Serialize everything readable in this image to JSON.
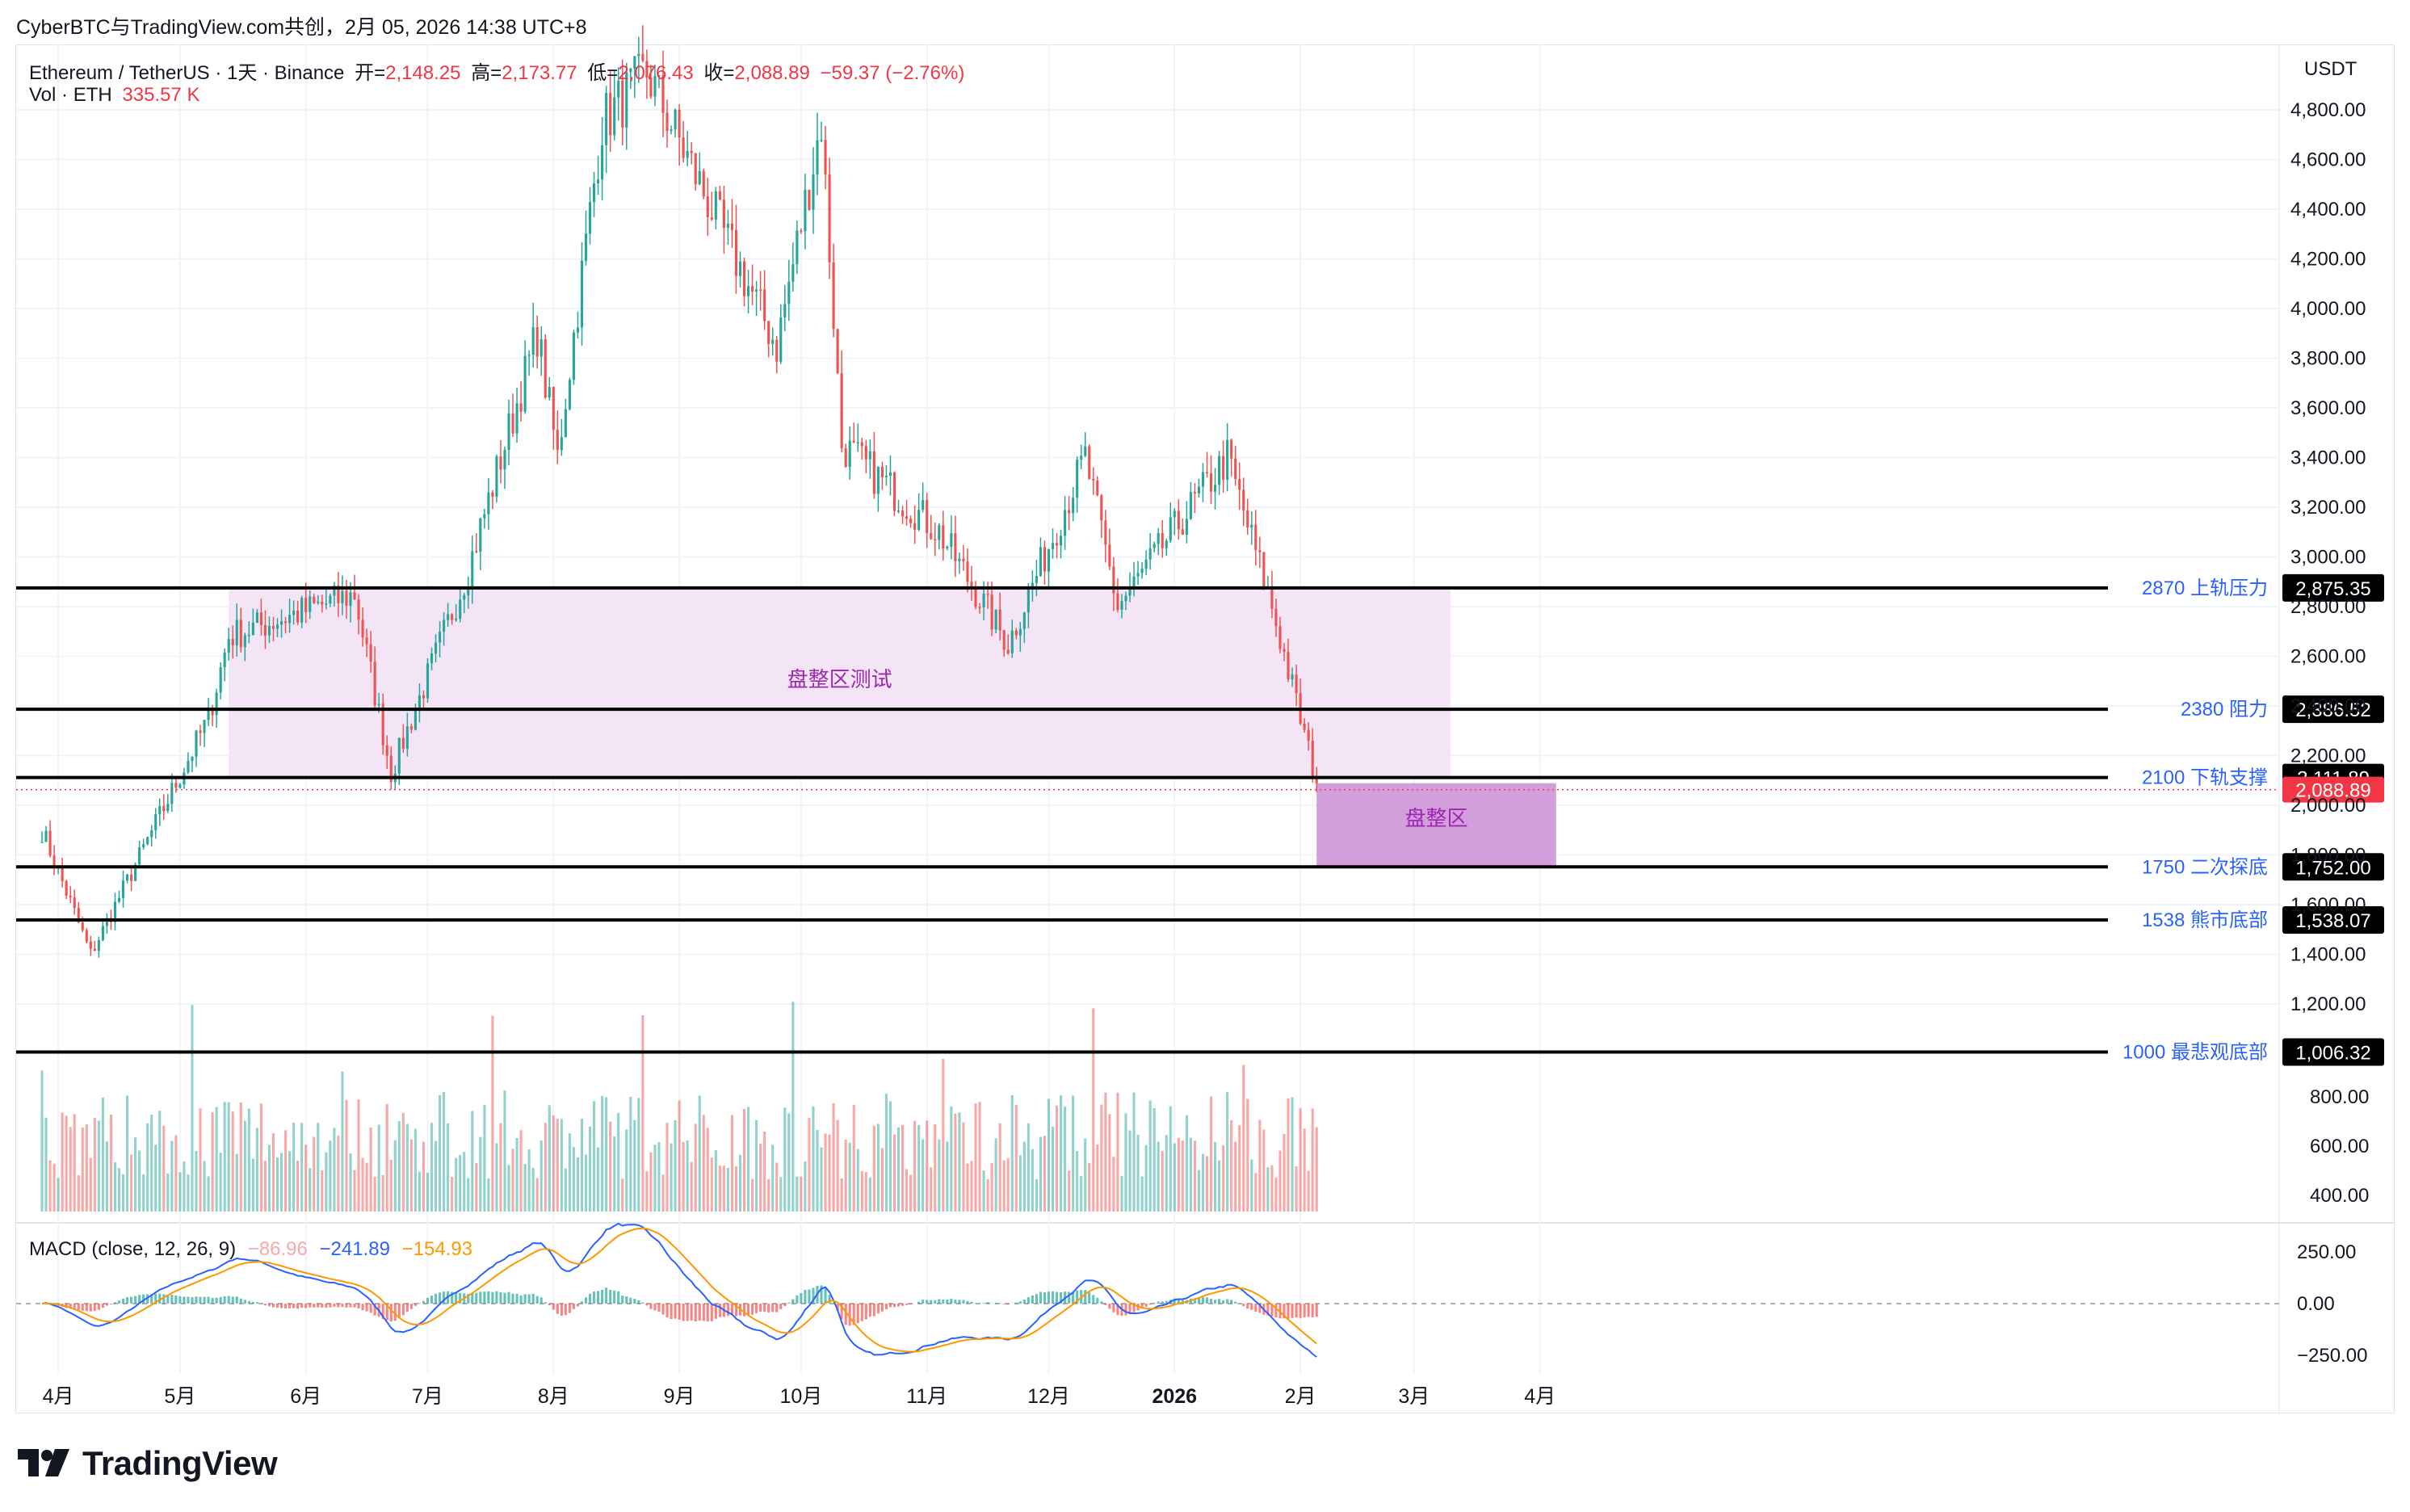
{
  "header": {
    "text": "CyberBTC与TradingView.com共创，2月 05, 2026 14:38 UTC+8"
  },
  "symbol": {
    "title": "Ethereum / TetherUS · 1天 · Binance",
    "open_label": "开=",
    "open": "2,148.25",
    "high_label": "高=",
    "high": "2,173.77",
    "low_label": "低=",
    "low": "2,076.43",
    "close_label": "收=",
    "close": "2,088.89",
    "change": "−59.37 (−2.76%)"
  },
  "volume_legend": {
    "label": "Vol · ETH",
    "value": "335.57 K"
  },
  "macd_legend": {
    "label": "MACD (close, 12, 26, 9)",
    "hist": "−86.96",
    "macd": "−241.89",
    "signal": "−154.93"
  },
  "price_axis": {
    "unit": "USDT",
    "ticks": [
      "4,800.00",
      "4,600.00",
      "4,400.00",
      "4,200.00",
      "4,000.00",
      "3,800.00",
      "3,600.00",
      "3,400.00",
      "3,200.00",
      "3,000.00",
      "2,800.00",
      "2,600.00",
      "2,400.00",
      "2,200.00",
      "2,000.00",
      "1,800.00",
      "1,600.00",
      "1,400.00",
      "1,200.00"
    ],
    "tick_values": [
      4800,
      4600,
      4400,
      4200,
      4000,
      3800,
      3600,
      3400,
      3200,
      3000,
      2800,
      2600,
      2400,
      2200,
      2000,
      1800,
      1600,
      1400,
      1200
    ],
    "volume_ticks": [
      "800.00",
      "600.00",
      "400.00"
    ],
    "macd_ticks": [
      "250.00",
      "0.00",
      "−250.00"
    ]
  },
  "time_axis": {
    "labels": [
      "4月",
      "5月",
      "6月",
      "7月",
      "8月",
      "9月",
      "10月",
      "11月",
      "12月",
      "2026",
      "2月",
      "3月",
      "4月"
    ]
  },
  "colors": {
    "up": "#26a69a",
    "down": "#ef5350",
    "label_blue": "#2962ff",
    "zone_fill": "#f3e5f5",
    "zone_box": "#ce93d8",
    "zone_text": "#9c27b0",
    "macd_line": "#2962ff",
    "signal_line": "#ff9800"
  },
  "chart_data": {
    "type": "candlestick",
    "title": "Ethereum / TetherUS · 1天 · Binance",
    "y_axis": {
      "ylim": [
        1000,
        4900
      ],
      "unit": "USDT"
    },
    "x_range": [
      "2025-03-28",
      "2026-04-25"
    ],
    "series_description": "ETH daily price: starts ~1900 in late Mar 2025, low ~1400 in early Apr, rallies to ~2600 mid-May, consolidates 2400-2800 through early Jul, rallies to ~4950 peak late Aug, holds 4000-4800 into Oct, declines to ~2900 by Nov, ranges 2800-3400 through Jan 2026, drops to 2088.89 on 2026-02-05.",
    "key_points": [
      {
        "date": "2025-03-28",
        "price": 1900
      },
      {
        "date": "2025-04-09",
        "price": 1400
      },
      {
        "date": "2025-05-08",
        "price": 2350
      },
      {
        "date": "2025-05-13",
        "price": 2680
      },
      {
        "date": "2025-06-13",
        "price": 2850
      },
      {
        "date": "2025-06-22",
        "price": 2130
      },
      {
        "date": "2025-07-11",
        "price": 2950
      },
      {
        "date": "2025-07-28",
        "price": 3900
      },
      {
        "date": "2025-08-02",
        "price": 3400
      },
      {
        "date": "2025-08-13",
        "price": 4750
      },
      {
        "date": "2025-08-24",
        "price": 4950
      },
      {
        "date": "2025-09-25",
        "price": 3850
      },
      {
        "date": "2025-10-06",
        "price": 4750
      },
      {
        "date": "2025-10-11",
        "price": 3450
      },
      {
        "date": "2025-11-04",
        "price": 3100
      },
      {
        "date": "2025-11-21",
        "price": 2650
      },
      {
        "date": "2025-12-10",
        "price": 3400
      },
      {
        "date": "2025-12-18",
        "price": 2800
      },
      {
        "date": "2026-01-14",
        "price": 3400
      },
      {
        "date": "2026-01-25",
        "price": 2800
      },
      {
        "date": "2026-02-05",
        "price": 2088.89
      }
    ],
    "levels": [
      {
        "label": "2870 上轨压力",
        "value": "2,875.35",
        "price": 2875.35
      },
      {
        "label": "2380 阻力",
        "value": "2,386.52",
        "price": 2386.52
      },
      {
        "label": "2100 下轨支撑",
        "value": "2,111.89",
        "price": 2111.89
      },
      {
        "label": "1750 二次探底",
        "value": "1,752.00",
        "price": 1752
      },
      {
        "label": "1538 熊市底部",
        "value": "1,538.07",
        "price": 1538.07
      },
      {
        "label": "1000 最悲观底部",
        "value": "1,006.32",
        "price": 1006.32
      }
    ],
    "current_price": {
      "value": "2,088.89",
      "price": 2088.89
    },
    "zones": [
      {
        "label": "盘整区测试",
        "from": "2025-05-13",
        "to": "2026-03-10",
        "low": 2111.89,
        "high": 2875.35
      },
      {
        "label": "盘整区",
        "from": "2026-02-05",
        "to": "2026-04-05",
        "low": 1752,
        "high": 2088.89
      }
    ]
  }
}
